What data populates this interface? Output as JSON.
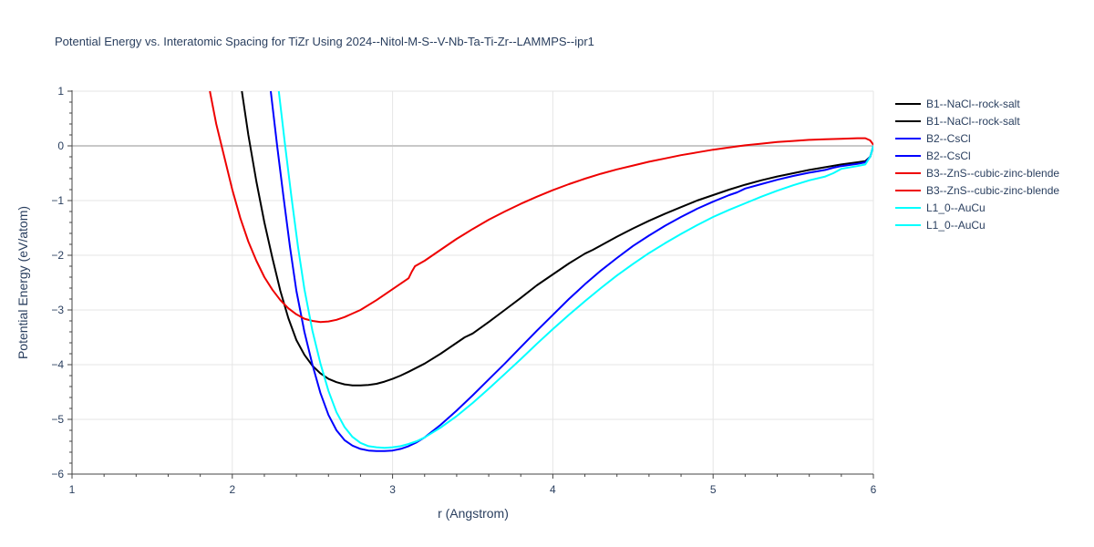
{
  "chart_data": {
    "type": "line",
    "title": "Potential Energy vs. Interatomic Spacing for TiZr Using 2024--Nitol-M-S--V-Nb-Ta-Ti-Zr--LAMMPS--ipr1",
    "xlabel": "r (Angstrom)",
    "ylabel": "Potential Energy (eV/atom)",
    "xlim": [
      1,
      6
    ],
    "ylim": [
      -6,
      1
    ],
    "xticks": [
      1,
      2,
      3,
      4,
      5,
      6
    ],
    "yticks": [
      1,
      0,
      -1,
      -2,
      -3,
      -4,
      -5,
      -6
    ],
    "xtick_labels": [
      "1",
      "2",
      "3",
      "4",
      "5",
      "6"
    ],
    "ytick_labels": [
      "1",
      "0",
      "−1",
      "−2",
      "−3",
      "−4",
      "−5",
      "−6"
    ],
    "grid": true,
    "legend_position": "right",
    "series": [
      {
        "name": "B1--NaCl--rock-salt",
        "color": "#000000",
        "x": [
          2.06,
          2.1,
          2.15,
          2.2,
          2.25,
          2.3,
          2.35,
          2.4,
          2.45,
          2.5,
          2.55,
          2.6,
          2.65,
          2.7,
          2.75,
          2.8,
          2.85,
          2.9,
          2.95,
          3.0,
          3.05,
          3.1,
          3.2,
          3.3,
          3.4,
          3.45,
          3.5,
          3.6,
          3.7,
          3.8,
          3.9,
          4.0,
          4.1,
          4.2,
          4.25,
          4.3,
          4.4,
          4.5,
          4.6,
          4.7,
          4.8,
          4.9,
          5.0,
          5.1,
          5.2,
          5.3,
          5.4,
          5.5,
          5.6,
          5.7,
          5.8,
          5.9,
          5.95,
          5.98,
          6.0
        ],
        "y": [
          1.0,
          0.2,
          -0.65,
          -1.4,
          -2.05,
          -2.65,
          -3.15,
          -3.55,
          -3.82,
          -4.02,
          -4.16,
          -4.26,
          -4.32,
          -4.36,
          -4.38,
          -4.38,
          -4.37,
          -4.35,
          -4.31,
          -4.26,
          -4.2,
          -4.13,
          -3.98,
          -3.8,
          -3.6,
          -3.5,
          -3.43,
          -3.22,
          -3.0,
          -2.78,
          -2.55,
          -2.35,
          -2.15,
          -1.97,
          -1.9,
          -1.82,
          -1.66,
          -1.51,
          -1.37,
          -1.24,
          -1.12,
          -1.0,
          -0.9,
          -0.8,
          -0.71,
          -0.63,
          -0.56,
          -0.5,
          -0.44,
          -0.39,
          -0.34,
          -0.3,
          -0.28,
          -0.2,
          0.0
        ]
      },
      {
        "name": "B1--NaCl--rock-salt",
        "color": "#000000",
        "x": [],
        "y": []
      },
      {
        "name": "B2--CsCl",
        "color": "#0000ff",
        "x": [
          2.24,
          2.28,
          2.32,
          2.36,
          2.4,
          2.45,
          2.5,
          2.55,
          2.6,
          2.65,
          2.7,
          2.75,
          2.8,
          2.85,
          2.9,
          2.95,
          3.0,
          3.05,
          3.1,
          3.15,
          3.2,
          3.3,
          3.4,
          3.5,
          3.6,
          3.7,
          3.8,
          3.9,
          4.0,
          4.1,
          4.2,
          4.3,
          4.4,
          4.5,
          4.6,
          4.7,
          4.8,
          4.9,
          5.0,
          5.1,
          5.15,
          5.2,
          5.3,
          5.4,
          5.5,
          5.6,
          5.7,
          5.75,
          5.8,
          5.9,
          5.95,
          5.98,
          6.0
        ],
        "y": [
          1.0,
          0.0,
          -0.95,
          -1.85,
          -2.65,
          -3.4,
          -4.0,
          -4.52,
          -4.92,
          -5.2,
          -5.38,
          -5.48,
          -5.54,
          -5.57,
          -5.58,
          -5.58,
          -5.57,
          -5.54,
          -5.49,
          -5.42,
          -5.33,
          -5.1,
          -4.84,
          -4.56,
          -4.27,
          -3.98,
          -3.68,
          -3.38,
          -3.09,
          -2.8,
          -2.53,
          -2.28,
          -2.05,
          -1.83,
          -1.64,
          -1.46,
          -1.3,
          -1.15,
          -1.02,
          -0.9,
          -0.85,
          -0.78,
          -0.7,
          -0.62,
          -0.55,
          -0.49,
          -0.44,
          -0.4,
          -0.37,
          -0.33,
          -0.3,
          -0.2,
          0.0
        ]
      },
      {
        "name": "B2--CsCl",
        "color": "#0000ff",
        "x": [],
        "y": []
      },
      {
        "name": "B3--ZnS--cubic-zinc-blende",
        "color": "#ee0000",
        "x": [
          1.86,
          1.9,
          1.95,
          2.0,
          2.05,
          2.1,
          2.15,
          2.2,
          2.25,
          2.3,
          2.35,
          2.4,
          2.45,
          2.5,
          2.55,
          2.6,
          2.65,
          2.7,
          2.8,
          2.9,
          3.0,
          3.05,
          3.1,
          3.12,
          3.14,
          3.2,
          3.3,
          3.4,
          3.5,
          3.6,
          3.7,
          3.8,
          3.9,
          4.0,
          4.1,
          4.2,
          4.3,
          4.4,
          4.5,
          4.6,
          4.7,
          4.8,
          4.9,
          5.0,
          5.1,
          5.2,
          5.3,
          5.4,
          5.5,
          5.6,
          5.7,
          5.8,
          5.9,
          5.95,
          5.98,
          6.0
        ],
        "y": [
          1.0,
          0.4,
          -0.2,
          -0.8,
          -1.32,
          -1.75,
          -2.1,
          -2.4,
          -2.63,
          -2.82,
          -2.97,
          -3.08,
          -3.16,
          -3.2,
          -3.22,
          -3.21,
          -3.18,
          -3.13,
          -3.0,
          -2.82,
          -2.62,
          -2.52,
          -2.42,
          -2.3,
          -2.2,
          -2.1,
          -1.9,
          -1.7,
          -1.52,
          -1.35,
          -1.2,
          -1.06,
          -0.93,
          -0.81,
          -0.7,
          -0.6,
          -0.51,
          -0.43,
          -0.36,
          -0.29,
          -0.23,
          -0.17,
          -0.12,
          -0.07,
          -0.03,
          0.01,
          0.04,
          0.07,
          0.09,
          0.11,
          0.12,
          0.13,
          0.14,
          0.14,
          0.1,
          0.02
        ]
      },
      {
        "name": "B3--ZnS--cubic-zinc-blende",
        "color": "#ee0000",
        "x": [],
        "y": []
      },
      {
        "name": "L1_0--AuCu",
        "color": "#00ffff",
        "x": [
          2.29,
          2.33,
          2.37,
          2.41,
          2.45,
          2.5,
          2.55,
          2.6,
          2.65,
          2.7,
          2.75,
          2.8,
          2.85,
          2.9,
          2.95,
          3.0,
          3.05,
          3.1,
          3.15,
          3.2,
          3.3,
          3.4,
          3.5,
          3.6,
          3.7,
          3.8,
          3.9,
          4.0,
          4.1,
          4.2,
          4.3,
          4.4,
          4.5,
          4.6,
          4.7,
          4.8,
          4.9,
          5.0,
          5.1,
          5.2,
          5.3,
          5.4,
          5.5,
          5.6,
          5.7,
          5.75,
          5.8,
          5.9,
          5.95,
          5.98,
          6.0
        ],
        "y": [
          1.0,
          0.0,
          -0.95,
          -1.85,
          -2.62,
          -3.38,
          -3.98,
          -4.48,
          -4.87,
          -5.14,
          -5.32,
          -5.43,
          -5.49,
          -5.51,
          -5.52,
          -5.51,
          -5.49,
          -5.45,
          -5.4,
          -5.33,
          -5.15,
          -4.94,
          -4.7,
          -4.44,
          -4.17,
          -3.9,
          -3.62,
          -3.35,
          -3.09,
          -2.84,
          -2.6,
          -2.37,
          -2.16,
          -1.96,
          -1.78,
          -1.61,
          -1.45,
          -1.3,
          -1.17,
          -1.05,
          -0.93,
          -0.82,
          -0.72,
          -0.63,
          -0.56,
          -0.5,
          -0.42,
          -0.37,
          -0.34,
          -0.2,
          0.0
        ]
      },
      {
        "name": "L1_0--AuCu",
        "color": "#00ffff",
        "x": [],
        "y": []
      }
    ]
  }
}
